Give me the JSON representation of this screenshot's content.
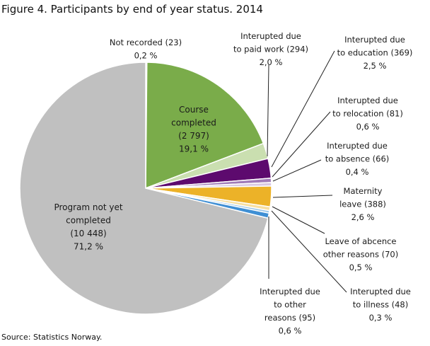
{
  "title": "Figure 4. Participants by end of year status. 2014",
  "source": "Source: Statistics Norway.",
  "chart_data": {
    "type": "pie",
    "title": "Figure 4. Participants by end of year status. 2014",
    "slices": [
      {
        "name": "Not recorded",
        "count": 23,
        "percent": 0.2,
        "count_text": "(23)",
        "pct_text": "0,2 %",
        "color": "#d9e4bd",
        "label": [
          "Not recorded  (23)",
          "0,2 %"
        ]
      },
      {
        "name": "Course completed",
        "count": 2797,
        "percent": 19.1,
        "count_text": "(2 797)",
        "pct_text": "19,1 %",
        "color": "#7aac4a",
        "label": [
          "Course",
          "completed",
          "(2 797)",
          "19,1 %"
        ]
      },
      {
        "name": "Interupted due to paid work",
        "count": 294,
        "percent": 2.0,
        "count_text": "(294)",
        "pct_text": "2,0 %",
        "color": "#cadfb0",
        "label": [
          "Interupted due",
          "to paid work  (294)",
          "2,0 %"
        ]
      },
      {
        "name": "Interupted due to education",
        "count": 369,
        "percent": 2.5,
        "count_text": "(369)",
        "pct_text": "2,5 %",
        "color": "#5d0a6e",
        "label": [
          "Interupted due",
          "to education  (369)",
          "2,5 %"
        ]
      },
      {
        "name": "Interupted due to relocation",
        "count": 81,
        "percent": 0.6,
        "count_text": "(81)",
        "pct_text": "0,6 %",
        "color": "#a07ab8",
        "label": [
          "Interupted due",
          "to relocation  (81)",
          "0,6 %"
        ]
      },
      {
        "name": "Interupted due to absence",
        "count": 66,
        "percent": 0.4,
        "count_text": "(66)",
        "pct_text": "0,4 %",
        "color": "#d8c8e3",
        "label": [
          "Interupted due",
          "to absence  (66)",
          "0,4 %"
        ]
      },
      {
        "name": "Maternity leave",
        "count": 388,
        "percent": 2.6,
        "count_text": "(388)",
        "pct_text": "2,6 %",
        "color": "#ecb228",
        "label": [
          "Maternity",
          "leave  (388)",
          "2,6 %"
        ]
      },
      {
        "name": "Leave of abcence other reasons",
        "count": 70,
        "percent": 0.5,
        "count_text": "(70)",
        "pct_text": "0,5 %",
        "color": "#f7dfa0",
        "label": [
          "Leave of abcence",
          "other reasons  (70)",
          "0,5 %"
        ]
      },
      {
        "name": "Interupted due to illness",
        "count": 48,
        "percent": 0.3,
        "count_text": "(48)",
        "pct_text": "0,3 %",
        "color": "#9ec7e8",
        "label": [
          "Interupted due",
          "to illness  (48)",
          "0,3 %"
        ]
      },
      {
        "name": "Interupted due to other reasons",
        "count": 95,
        "percent": 0.6,
        "count_text": "(95)",
        "pct_text": "0,6 %",
        "color": "#3f8fd4",
        "label": [
          "Interupted due",
          "to other",
          "reasons  (95)",
          "0,6 %"
        ]
      },
      {
        "name": "Program not yet completed",
        "count": 10448,
        "percent": 71.2,
        "count_text": "(10 448)",
        "pct_text": "71,2 %",
        "color": "#c0c0c0",
        "label": [
          "Program  not yet",
          "completed",
          "(10 448)",
          "71,2 %"
        ]
      }
    ],
    "legend": "none",
    "start_angle_deg": 0,
    "direction": "clockwise"
  }
}
